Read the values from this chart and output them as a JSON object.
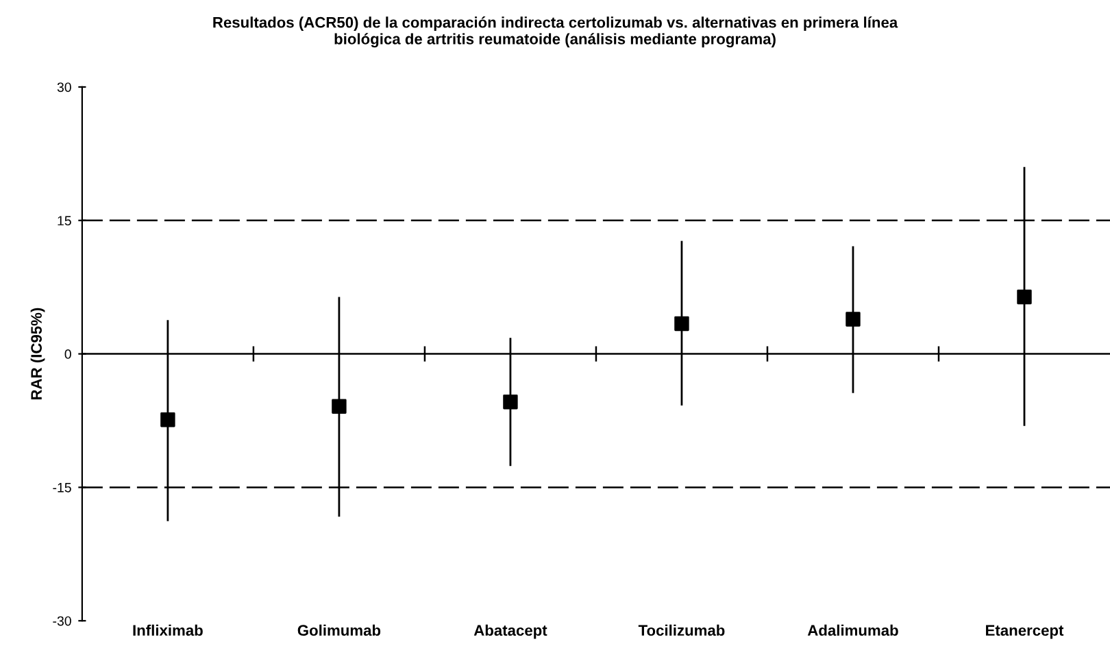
{
  "chart_data": {
    "type": "scatter",
    "title": "Resultados (ACR50) de la comparación indirecta certolizumab vs. alternativas en primera línea\nbiológica de artritis reumatoide (análisis mediante programa)",
    "ylabel": "RAR (IC95%)",
    "categories": [
      "Infliximab",
      "Golimumab",
      "Abatacept",
      "Tocilizumab",
      "Adalimumab",
      "Etanercept"
    ],
    "series": [
      {
        "color": "#000000",
        "values": [
          -7.4,
          -5.9,
          -5.4,
          3.4,
          3.9,
          6.4
        ],
        "errors": [
          [
            -18.8,
            3.8
          ],
          [
            -18.3,
            6.4
          ],
          [
            -12.6,
            1.8
          ],
          [
            -5.8,
            12.7
          ],
          [
            -4.4,
            12.1
          ],
          [
            -8.1,
            21.0
          ]
        ]
      }
    ],
    "marker": "square",
    "ylim": [
      -30,
      30
    ],
    "yticks": [
      -30,
      -15,
      0,
      15,
      30
    ],
    "ref_lines": [
      {
        "axis": "y",
        "value": 15,
        "line_style": "dashed",
        "color": "#000000"
      },
      {
        "axis": "y",
        "value": -15,
        "line_style": "dashed",
        "color": "#000000"
      },
      {
        "axis": "y",
        "value": 0,
        "line_style": "solid",
        "color": "#000000"
      }
    ],
    "grid": false,
    "legend": false
  }
}
